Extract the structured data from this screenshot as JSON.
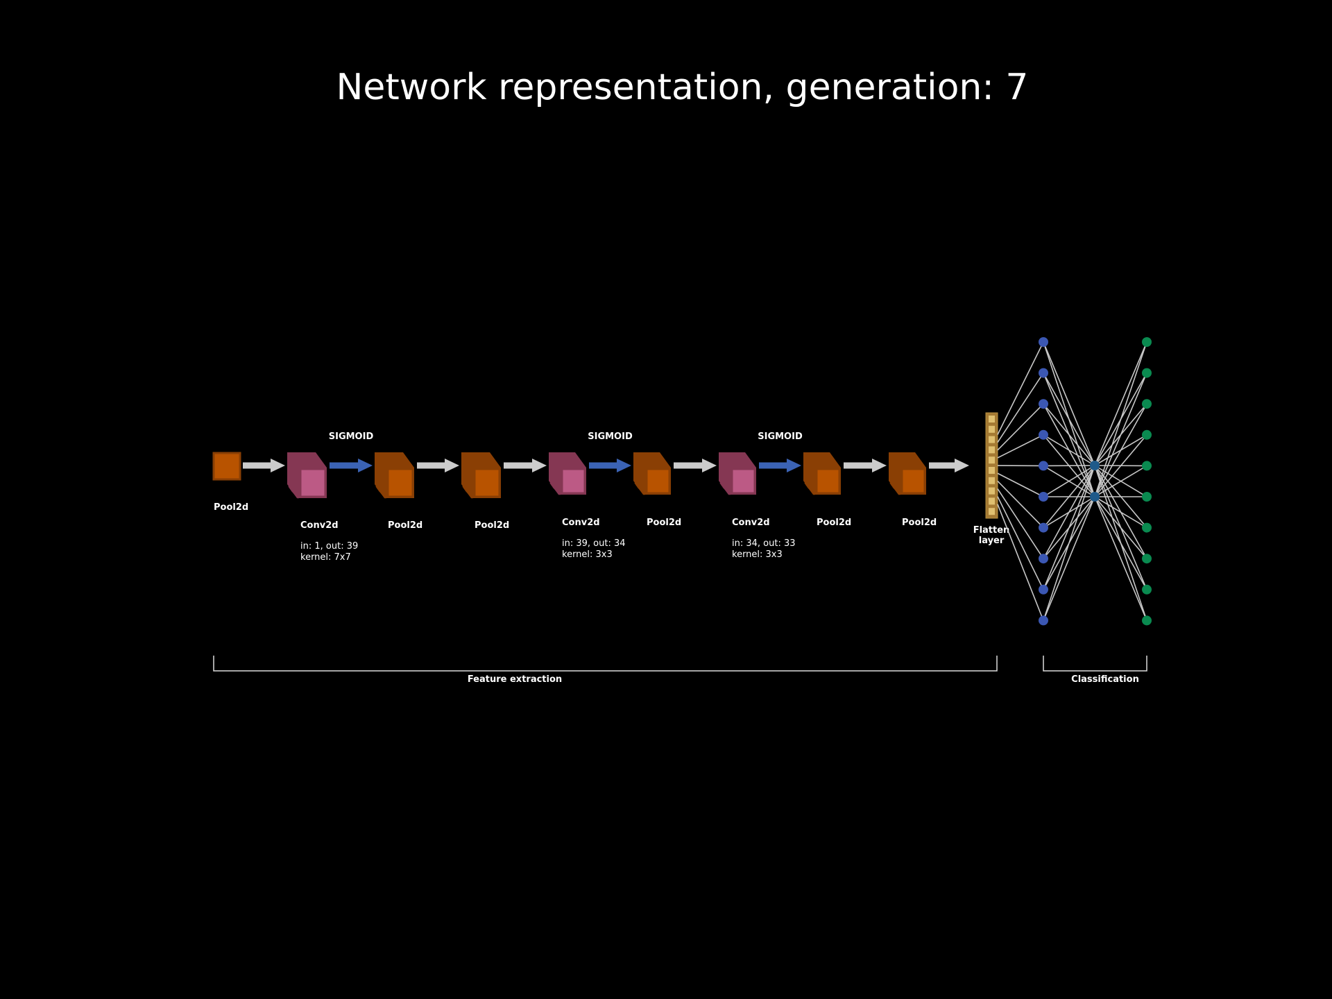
{
  "title": "Network representation, generation: 7",
  "colors": {
    "background": "#000000",
    "pool_front": "#b85300",
    "pool_back": "#8a3f04",
    "conv_front": "#bc5a85",
    "conv_back": "#853753",
    "arrow_plain": "#cccccc",
    "arrow_activation": "#3b63b5",
    "flatten": "#e0c070",
    "hidden_node": "#3b57b3",
    "mid_node": "#1f5a8a",
    "output_node": "#0a8a50",
    "connection": "#c8c8c8"
  },
  "layers": [
    {
      "type": "Pool2d",
      "kind": "pool-single",
      "info": []
    },
    {
      "type": "Conv2d",
      "kind": "conv",
      "info": [
        "in: 1, out: 39",
        "kernel: 7x7"
      ]
    },
    {
      "type": "Pool2d",
      "kind": "pool",
      "info": []
    },
    {
      "type": "Pool2d",
      "kind": "pool",
      "info": []
    },
    {
      "type": "Conv2d",
      "kind": "conv",
      "info": [
        "in: 39, out: 34",
        "kernel: 3x3"
      ]
    },
    {
      "type": "Pool2d",
      "kind": "pool",
      "info": []
    },
    {
      "type": "Conv2d",
      "kind": "conv",
      "info": [
        "in: 34, out: 33",
        "kernel: 3x3"
      ]
    },
    {
      "type": "Pool2d",
      "kind": "pool",
      "info": []
    },
    {
      "type": "Pool2d",
      "kind": "pool",
      "info": []
    }
  ],
  "arrows": [
    {
      "activation": ""
    },
    {
      "activation": "SIGMOID"
    },
    {
      "activation": ""
    },
    {
      "activation": ""
    },
    {
      "activation": "SIGMOID"
    },
    {
      "activation": ""
    },
    {
      "activation": "SIGMOID"
    },
    {
      "activation": ""
    },
    {
      "activation": ""
    }
  ],
  "flatten": {
    "label_line1": "Flatten",
    "label_line2": "layer",
    "cells": 10
  },
  "classifier": {
    "hidden_nodes": 10,
    "mid_nodes": 2,
    "output_nodes": 10
  },
  "sections": {
    "feature_extraction": "Feature extraction",
    "classification": "Classification"
  }
}
